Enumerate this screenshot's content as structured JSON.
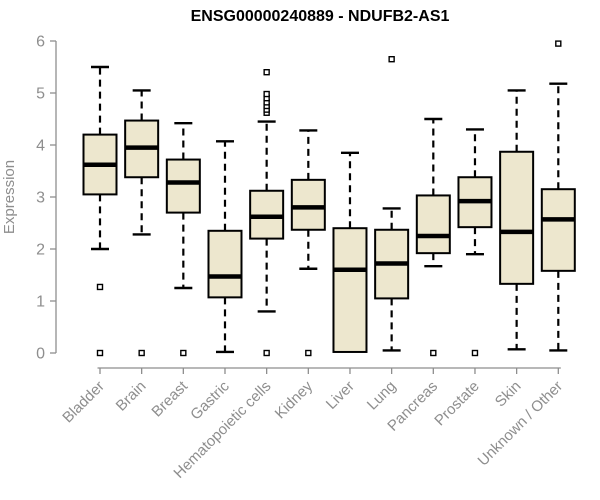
{
  "chart_data": {
    "type": "boxplot",
    "title": "ENSG00000240889 - NDUFB2-AS1",
    "ylabel": "Expression",
    "xlabel": "",
    "ylim": [
      0,
      6
    ],
    "yticks": [
      0,
      1,
      2,
      3,
      4,
      5,
      6
    ],
    "grid": false,
    "legend": false,
    "colors": {
      "box_fill": "#EDE7CE",
      "box_stroke": "#000000",
      "median": "#000000",
      "whisker": "#000000",
      "outlier_stroke": "#000000",
      "outlier_fill": "#FFFFFF",
      "axis": "#8E8E8E",
      "tick_label": "#8E8E8E",
      "title": "#000000",
      "background": "#FFFFFF"
    },
    "categories": [
      "Bladder",
      "Brain",
      "Breast",
      "Gastric",
      "Hematopoietic cells",
      "Kidney",
      "Liver",
      "Lung",
      "Pancreas",
      "Prostate",
      "Skin",
      "Unknown / Other"
    ],
    "series": [
      {
        "category": "Bladder",
        "whisker_low": 2.0,
        "q1": 3.05,
        "median": 3.62,
        "q3": 4.2,
        "whisker_high": 5.5,
        "outliers": [
          1.27,
          0.0
        ]
      },
      {
        "category": "Brain",
        "whisker_low": 2.28,
        "q1": 3.38,
        "median": 3.95,
        "q3": 4.47,
        "whisker_high": 5.05,
        "outliers": [
          0.0
        ]
      },
      {
        "category": "Breast",
        "whisker_low": 1.25,
        "q1": 2.7,
        "median": 3.28,
        "q3": 3.72,
        "whisker_high": 4.42,
        "outliers": [
          0.0
        ]
      },
      {
        "category": "Gastric",
        "whisker_low": 0.02,
        "q1": 1.07,
        "median": 1.47,
        "q3": 2.35,
        "whisker_high": 4.07,
        "outliers": []
      },
      {
        "category": "Hematopoietic cells",
        "whisker_low": 0.8,
        "q1": 2.2,
        "median": 2.62,
        "q3": 3.12,
        "whisker_high": 4.45,
        "outliers": [
          0.0,
          4.62,
          4.68,
          4.75,
          4.82,
          4.9,
          4.98,
          5.4
        ]
      },
      {
        "category": "Kidney",
        "whisker_low": 1.62,
        "q1": 2.37,
        "median": 2.8,
        "q3": 3.33,
        "whisker_high": 4.28,
        "outliers": [
          0.0
        ]
      },
      {
        "category": "Liver",
        "whisker_low": 0.02,
        "q1": 0.02,
        "median": 1.6,
        "q3": 2.4,
        "whisker_high": 3.85,
        "outliers": []
      },
      {
        "category": "Lung",
        "whisker_low": 0.05,
        "q1": 1.05,
        "median": 1.72,
        "q3": 2.37,
        "whisker_high": 2.78,
        "outliers": [
          5.65
        ]
      },
      {
        "category": "Pancreas",
        "whisker_low": 1.67,
        "q1": 1.92,
        "median": 2.25,
        "q3": 3.03,
        "whisker_high": 4.5,
        "outliers": [
          0.0
        ]
      },
      {
        "category": "Prostate",
        "whisker_low": 1.9,
        "q1": 2.42,
        "median": 2.92,
        "q3": 3.38,
        "whisker_high": 4.3,
        "outliers": [
          0.0
        ]
      },
      {
        "category": "Skin",
        "whisker_low": 0.07,
        "q1": 1.33,
        "median": 2.33,
        "q3": 3.87,
        "whisker_high": 5.05,
        "outliers": []
      },
      {
        "category": "Unknown / Other",
        "whisker_low": 0.05,
        "q1": 1.58,
        "median": 2.57,
        "q3": 3.15,
        "whisker_high": 5.18,
        "outliers": [
          5.95
        ]
      }
    ]
  }
}
